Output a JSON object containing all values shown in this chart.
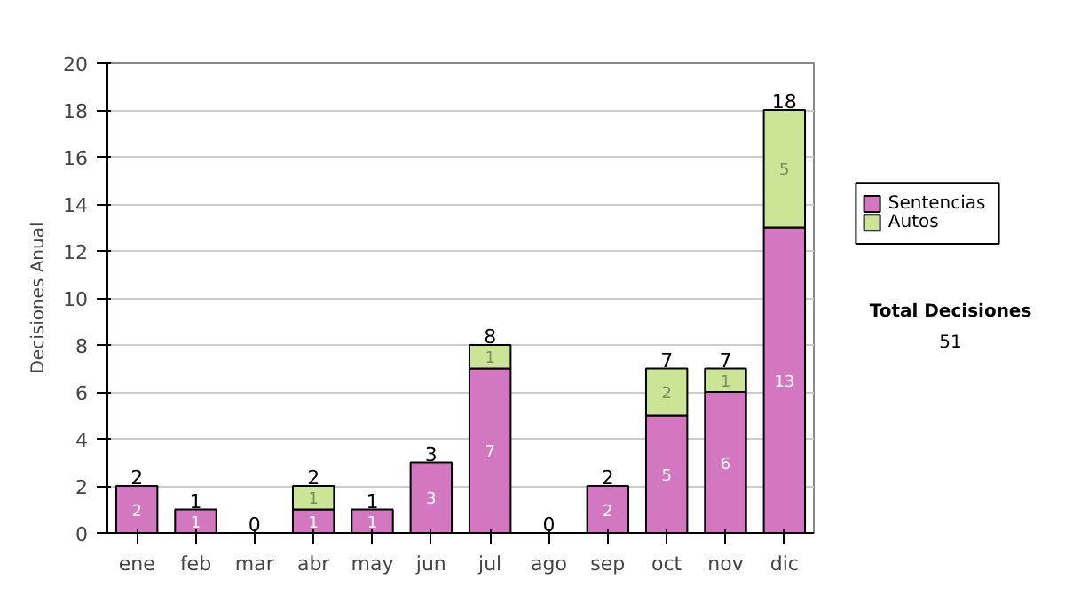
{
  "chart_data": {
    "type": "bar",
    "stacked": true,
    "ylabel": "Decisiones Anual",
    "categories": [
      "ene",
      "feb",
      "mar",
      "abr",
      "may",
      "jun",
      "jul",
      "ago",
      "sep",
      "oct",
      "nov",
      "dic"
    ],
    "series": [
      {
        "name": "Sentencias",
        "color": "#d277c0",
        "values": [
          2,
          1,
          0,
          1,
          1,
          3,
          7,
          0,
          2,
          5,
          6,
          13
        ],
        "value_labels": [
          "2",
          "1",
          null,
          "1",
          "1",
          "3",
          "7",
          null,
          "2",
          "5",
          "6",
          "13"
        ]
      },
      {
        "name": "Autos",
        "color": "#cce495",
        "values": [
          0,
          0,
          0,
          1,
          0,
          0,
          1,
          0,
          0,
          2,
          1,
          5
        ],
        "value_labels": [
          null,
          null,
          null,
          "1",
          null,
          null,
          "1",
          null,
          null,
          "2",
          "1",
          "5"
        ]
      }
    ],
    "totals": [
      "2",
      "1",
      "0",
      "2",
      "1",
      "3",
      "8",
      "0",
      "2",
      "7",
      "7",
      "18"
    ],
    "ylim": [
      0,
      20
    ],
    "yticks": [
      0,
      2,
      4,
      6,
      8,
      10,
      12,
      14,
      16,
      18,
      20
    ],
    "grid": "y",
    "legend": "right",
    "annotations": [
      "Total Decisiones",
      "51"
    ]
  }
}
